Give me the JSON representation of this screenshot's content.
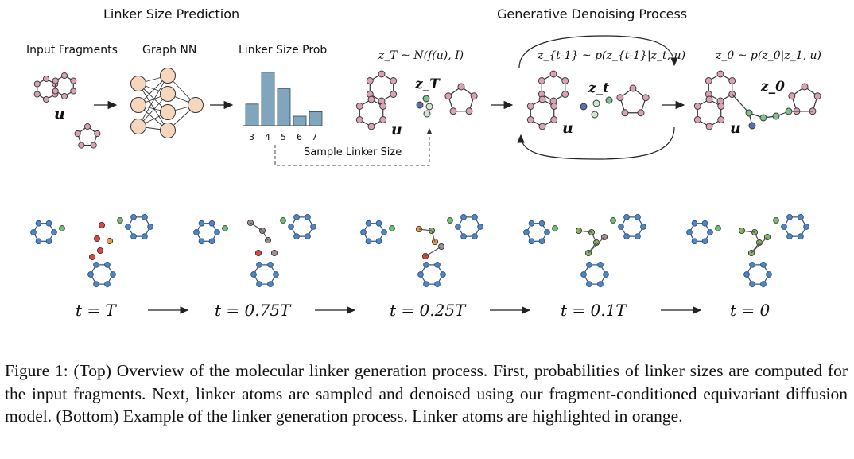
{
  "top": {
    "linker_size_prediction": "Linker Size Prediction",
    "generative_denoising": "Generative Denoising Process",
    "input_fragments": "Input Fragments",
    "graph_nn": "Graph NN",
    "linker_size_prob": "Linker Size Prob",
    "sample_linker_size": "Sample Linker Size",
    "u_symbol": "u",
    "hist_ticks": [
      "3",
      "4",
      "5",
      "6",
      "7"
    ],
    "hist_values": [
      0.34,
      0.84,
      0.58,
      0.15,
      0.22
    ],
    "zT_dist": "z_T ~ N(f(u), I)",
    "zT_label": "z_T",
    "zt_dist": "z_{t-1} ~ p(z_{t-1}|z_t, u)",
    "zt_label": "z_t",
    "z0_dist": "z_0 ~ p(z_0|z_1, u)",
    "z0_label": "z_0"
  },
  "bottom": {
    "time_labels": [
      "t = T",
      "t = 0.75T",
      "t = 0.25T",
      "t = 0.1T",
      "t = 0"
    ]
  },
  "caption": "Figure 1: (Top) Overview of the molecular linker generation process. First, probabilities of linker sizes are computed for the input fragments. Next, linker atoms are sampled and denoised using our fragment-conditioned equivariant diffusion model. (Bottom) Example of the linker generation process. Linker atoms are highlighted in orange.",
  "colors": {
    "fragment_atom": "#d9a3b3",
    "neuron": "#f7d6be",
    "histogram_bar": "#7fa6bd",
    "linker_green": "#7fbf8a",
    "linker_blue": "#5b6fb8",
    "molecule_blue": "#4f86c6",
    "molecule_green": "#6cc36c",
    "noise_red": "#e0443a",
    "noise_orange": "#f09a3e"
  }
}
